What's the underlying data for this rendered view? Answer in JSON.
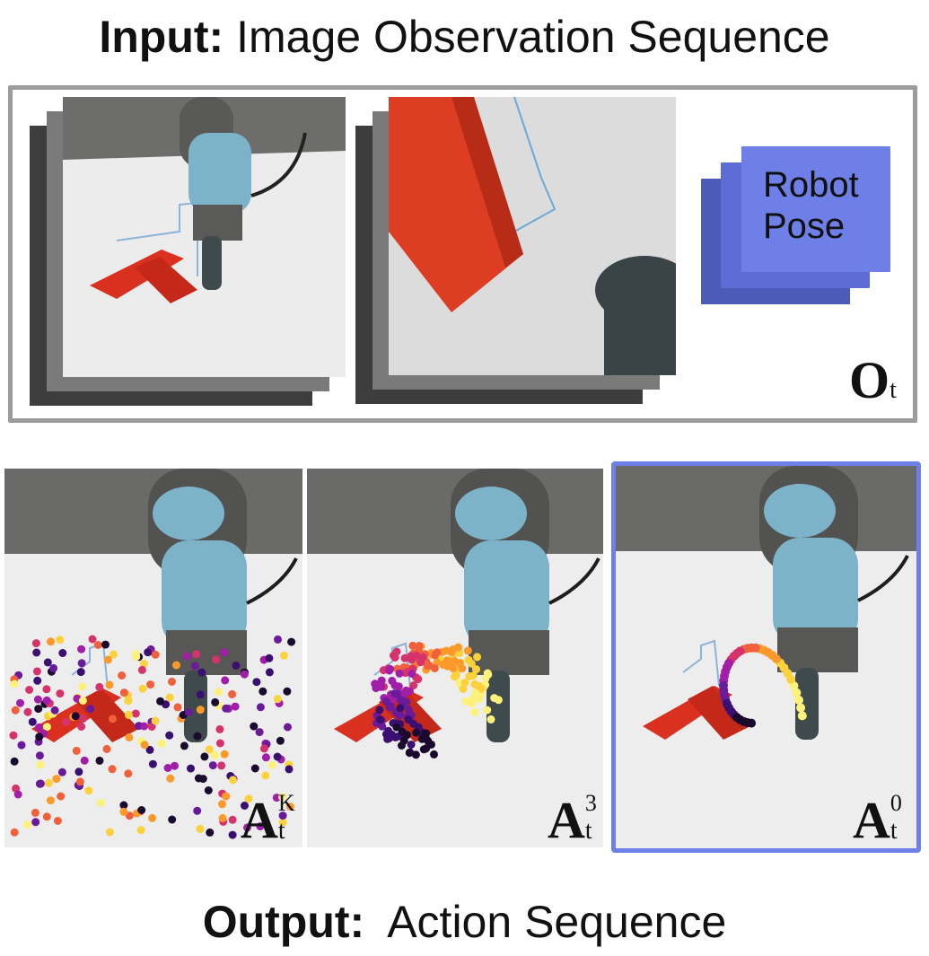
{
  "input_title": {
    "bold": "Input:",
    "rest": " Image Observation Sequence"
  },
  "output_title": {
    "bold": "Output:",
    "rest": "  Action Sequence"
  },
  "robot_pose": {
    "line1": "Robot",
    "line2": "Pose"
  },
  "observation_label": {
    "symbol": "O",
    "sub": "t"
  },
  "action_panels": [
    {
      "symbol": "A",
      "sub": "t",
      "sup": "K"
    },
    {
      "symbol": "A",
      "sub": "t",
      "sup": "3"
    },
    {
      "symbol": "A",
      "sub": "t",
      "sup": "0"
    }
  ],
  "colors": {
    "frame_gray": "#9c9c9c",
    "pose_blue": "#6f7fe8",
    "highlight_blue": "#6f7fe8",
    "t_block_red": "#d9301f",
    "robot_cap": "#7db3c9"
  }
}
